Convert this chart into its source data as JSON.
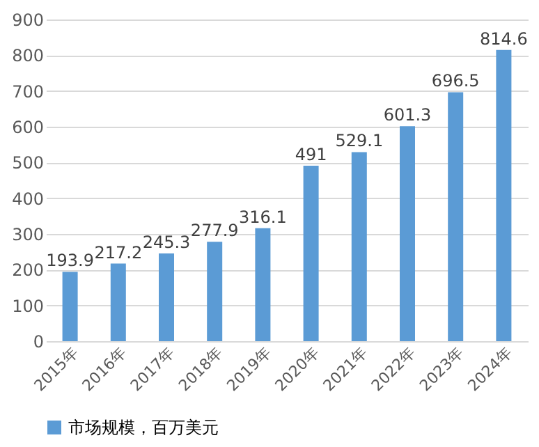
{
  "chart_data": {
    "type": "bar",
    "categories": [
      "2015年",
      "2016年",
      "2017年",
      "2018年",
      "2019年",
      "2020年",
      "2021年",
      "2022年",
      "2023年",
      "2024年"
    ],
    "series": [
      {
        "name": "市场规模，百万美元",
        "color": "#5b9bd5",
        "values": [
          193.9,
          217.2,
          245.3,
          277.9,
          316.1,
          491,
          529.1,
          601.3,
          696.5,
          814.6
        ]
      }
    ],
    "ylim": [
      0,
      900
    ],
    "yticks": [
      0,
      100,
      200,
      300,
      400,
      500,
      600,
      700,
      800,
      900
    ],
    "grid": "y",
    "legend": "bottom",
    "data_labels": true
  }
}
